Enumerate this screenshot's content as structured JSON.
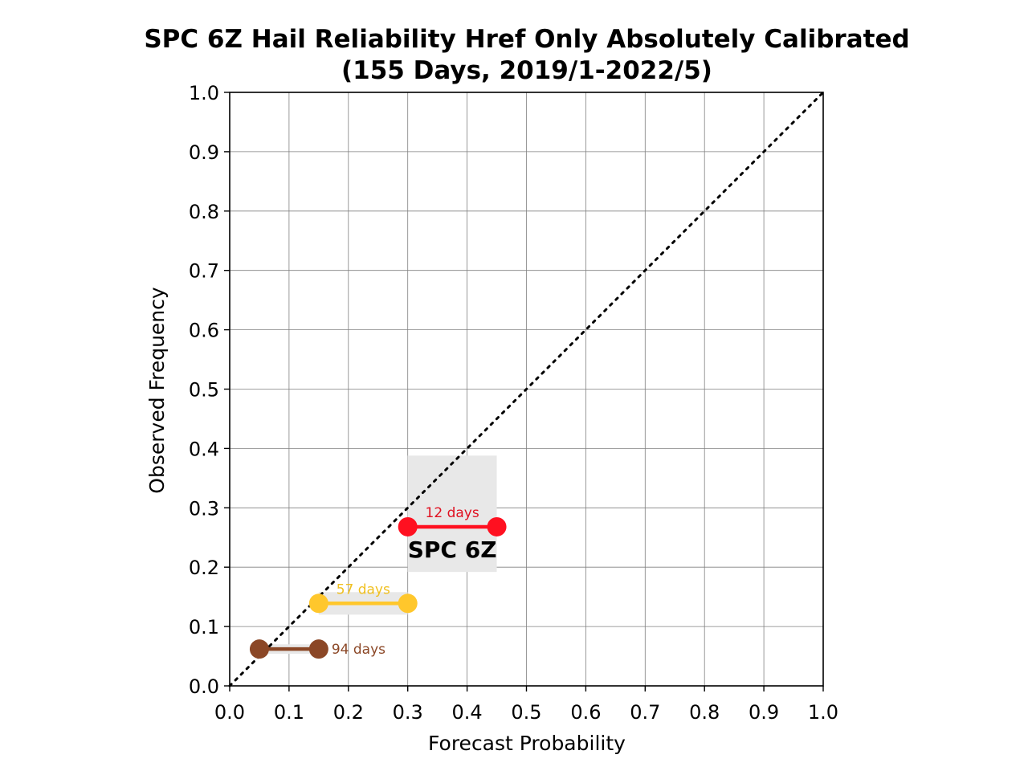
{
  "chart_data": {
    "type": "scatter",
    "title": "SPC 6Z Hail Reliability Href Only Absolutely Calibrated",
    "subtitle": "(155 Days, 2019/1-2022/5)",
    "xlabel": "Forecast Probability",
    "ylabel": "Observed Frequency",
    "xlim": [
      0.0,
      1.0
    ],
    "ylim": [
      0.0,
      1.0
    ],
    "x_ticks": [
      "0.0",
      "0.1",
      "0.2",
      "0.3",
      "0.4",
      "0.5",
      "0.6",
      "0.7",
      "0.8",
      "0.9",
      "1.0"
    ],
    "y_ticks": [
      "0.0",
      "0.1",
      "0.2",
      "0.3",
      "0.4",
      "0.5",
      "0.6",
      "0.7",
      "0.8",
      "0.9",
      "1.0"
    ],
    "grid": true,
    "diagonal": "perfect-reliability dotted line",
    "series": [
      {
        "x": [
          0.05,
          0.15
        ],
        "y": 0.062,
        "label": "94 days",
        "color": "#8B4726",
        "uncertainty": [
          0.054,
          0.07
        ]
      },
      {
        "x": [
          0.15,
          0.3
        ],
        "y": 0.139,
        "label": "57 days",
        "color": "#FFC72C",
        "label_color": "#F0C020",
        "uncertainty": [
          0.12,
          0.158
        ]
      },
      {
        "x": [
          0.3,
          0.45
        ],
        "y": 0.268,
        "label": "12 days",
        "color": "#FF1020",
        "label_color": "#E01020",
        "uncertainty": [
          0.192,
          0.388
        ]
      }
    ],
    "annotations": [
      {
        "text": "SPC 6Z",
        "x": 0.375,
        "y": 0.23
      }
    ]
  }
}
